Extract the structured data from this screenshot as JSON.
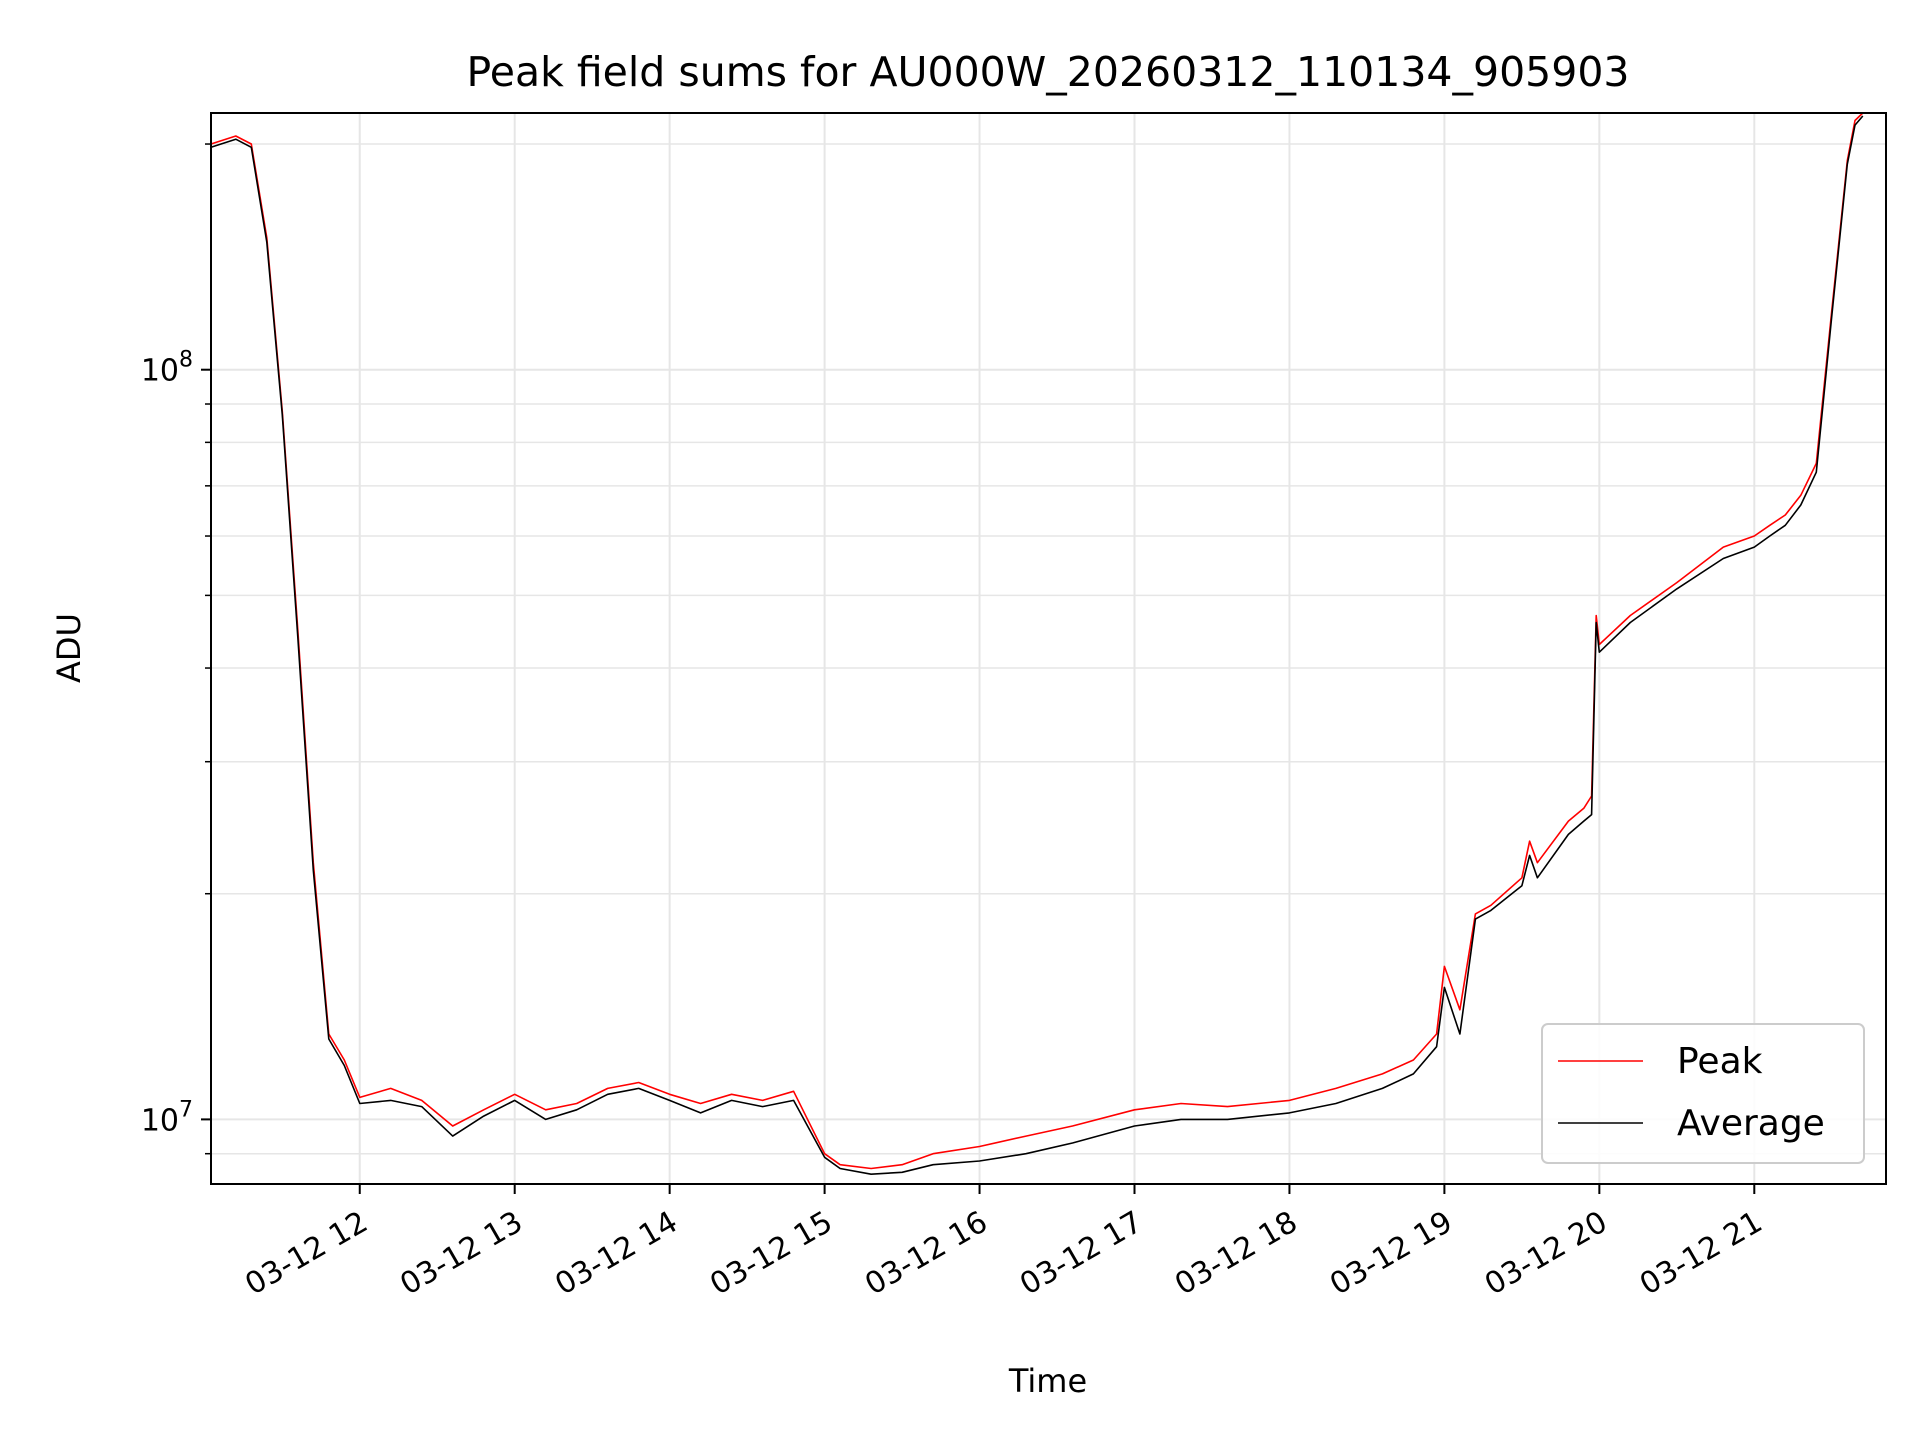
{
  "chart_data": {
    "type": "line",
    "title": "Peak field sums for AU000W_20260312_110134_905903",
    "xlabel": "Time",
    "ylabel": "ADU",
    "yscale": "log",
    "ylim": [
      8200000,
      220000000
    ],
    "xlim": [
      11.04,
      21.85
    ],
    "grid": true,
    "legend_position": "lower-right",
    "x_ticks": [
      {
        "value": 12,
        "label": "03-12 12"
      },
      {
        "value": 13,
        "label": "03-12 13"
      },
      {
        "value": 14,
        "label": "03-12 14"
      },
      {
        "value": 15,
        "label": "03-12 15"
      },
      {
        "value": 16,
        "label": "03-12 16"
      },
      {
        "value": 17,
        "label": "03-12 17"
      },
      {
        "value": 18,
        "label": "03-12 18"
      },
      {
        "value": 19,
        "label": "03-12 19"
      },
      {
        "value": 20,
        "label": "03-12 20"
      },
      {
        "value": 21,
        "label": "03-12 21"
      }
    ],
    "y_ticks": [
      {
        "value": 10000000,
        "base": "10",
        "exp": "7"
      },
      {
        "value": 100000000,
        "base": "10",
        "exp": "8"
      }
    ],
    "x": [
      11.04,
      11.2,
      11.3,
      11.4,
      11.5,
      11.6,
      11.7,
      11.8,
      11.9,
      12.0,
      12.2,
      12.4,
      12.6,
      12.8,
      13.0,
      13.2,
      13.4,
      13.6,
      13.8,
      14.0,
      14.2,
      14.4,
      14.6,
      14.8,
      15.0,
      15.1,
      15.3,
      15.5,
      15.7,
      16.0,
      16.3,
      16.6,
      17.0,
      17.3,
      17.6,
      18.0,
      18.3,
      18.6,
      18.8,
      18.95,
      19.0,
      19.1,
      19.2,
      19.3,
      19.5,
      19.55,
      19.6,
      19.8,
      19.9,
      19.95,
      19.98,
      20.0,
      20.2,
      20.5,
      20.8,
      21.0,
      21.1,
      21.2,
      21.3,
      21.4,
      21.5,
      21.6,
      21.65,
      21.7
    ],
    "series": [
      {
        "name": "Peak",
        "color": "#ff0000",
        "values": [
          200000000,
          205000000,
          200000000,
          150000000,
          88000000,
          45000000,
          22000000,
          13000000,
          12000000,
          10700000,
          11000000,
          10600000,
          9800000,
          10300000,
          10800000,
          10300000,
          10500000,
          11000000,
          11200000,
          10800000,
          10500000,
          10800000,
          10600000,
          10900000,
          9000000,
          8700000,
          8600000,
          8700000,
          9000000,
          9200000,
          9500000,
          9800000,
          10300000,
          10500000,
          10400000,
          10600000,
          11000000,
          11500000,
          12000000,
          13000000,
          16000000,
          14000000,
          18800000,
          19300000,
          21000000,
          23500000,
          22000000,
          25000000,
          26000000,
          27000000,
          47000000,
          43000000,
          47000000,
          52000000,
          58000000,
          60000000,
          62000000,
          64000000,
          68000000,
          75000000,
          120000000,
          190000000,
          215000000,
          220000000
        ]
      },
      {
        "name": "Average",
        "color": "#000000",
        "values": [
          198000000,
          203000000,
          198000000,
          148000000,
          87000000,
          44000000,
          21500000,
          12800000,
          11800000,
          10500000,
          10600000,
          10400000,
          9500000,
          10100000,
          10600000,
          10000000,
          10300000,
          10800000,
          11000000,
          10600000,
          10200000,
          10600000,
          10400000,
          10600000,
          8900000,
          8600000,
          8450000,
          8500000,
          8700000,
          8800000,
          9000000,
          9300000,
          9800000,
          10000000,
          10000000,
          10200000,
          10500000,
          11000000,
          11500000,
          12500000,
          15000000,
          13000000,
          18500000,
          19000000,
          20500000,
          22500000,
          21000000,
          24000000,
          25000000,
          25500000,
          46000000,
          42000000,
          46000000,
          51000000,
          56000000,
          58000000,
          60000000,
          62000000,
          66000000,
          73000000,
          118000000,
          188000000,
          212000000,
          218000000
        ]
      }
    ]
  }
}
